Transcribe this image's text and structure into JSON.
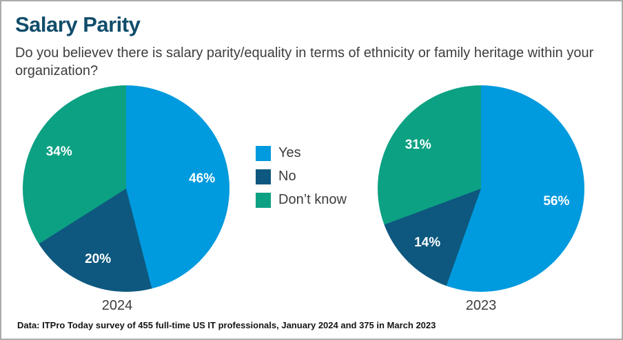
{
  "header": {
    "title": "Salary Parity",
    "subtitle": "Do you believev there is salary parity/equality in terms of ethnicity or family heritage within your organization?"
  },
  "colors": {
    "yes": "#009ade",
    "no": "#0e587f",
    "dont_know": "#0ca183",
    "title_text": "#114d6b",
    "body_text": "#3d3d3d"
  },
  "legend": {
    "items": [
      {
        "label": "Yes",
        "color": "#009ade"
      },
      {
        "label": "No",
        "color": "#0e587f"
      },
      {
        "label": "Don’t know",
        "color": "#0ca183"
      }
    ]
  },
  "chart_data": [
    {
      "type": "pie",
      "title": "2024",
      "categories": [
        "Yes",
        "No",
        "Don't know"
      ],
      "values": [
        46,
        20,
        34
      ],
      "value_labels": [
        "46%",
        "20%",
        "34%"
      ],
      "colors": [
        "#009ade",
        "#0e587f",
        "#0ca183"
      ],
      "start_angle_deg": 0,
      "direction": "clockwise",
      "legend_position": "right-of-pie"
    },
    {
      "type": "pie",
      "title": "2023",
      "categories": [
        "Yes",
        "No",
        "Don't know"
      ],
      "values": [
        56,
        14,
        31
      ],
      "value_labels": [
        "56%",
        "14%",
        "31%"
      ],
      "colors": [
        "#009ade",
        "#0e587f",
        "#0ca183"
      ],
      "start_angle_deg": 0,
      "direction": "clockwise",
      "legend_position": "left-of-pie"
    }
  ],
  "footer": {
    "source": "Data: ITPro Today survey of 455 full-time US IT professionals, January 2024 and 375 in March 2023"
  }
}
